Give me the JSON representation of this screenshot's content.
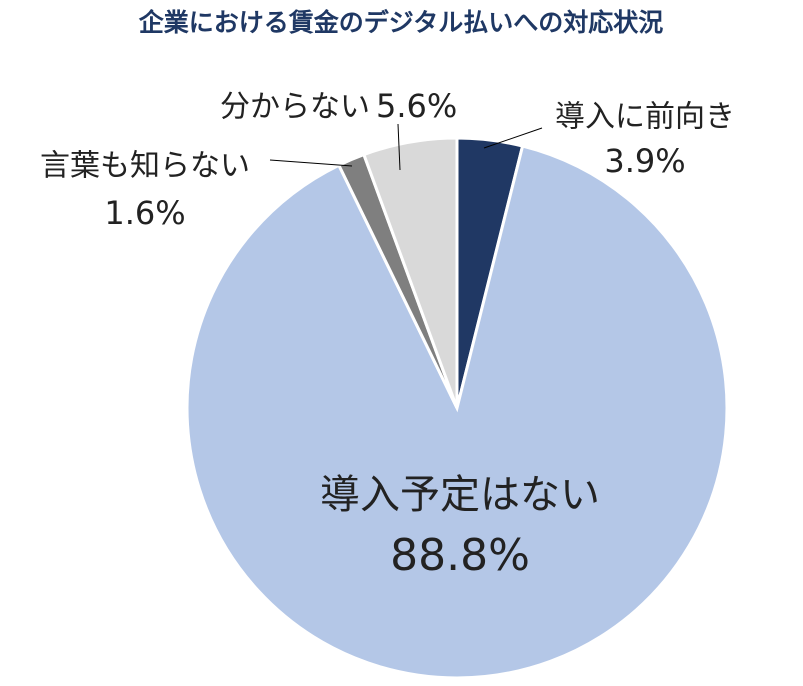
{
  "chart_data": {
    "type": "pie",
    "title": "企業における賃金のデジタル払いへの対応状況",
    "categories": [
      "導入に前向き",
      "導入予定はない",
      "言葉も知らない",
      "分からない"
    ],
    "values": [
      3.9,
      88.8,
      1.6,
      5.6
    ],
    "value_labels": [
      "3.9%",
      "88.8%",
      "1.6%",
      "5.6%"
    ],
    "colors": [
      "#203864",
      "#b4c7e7",
      "#7f7f7f",
      "#d9d9d9"
    ]
  }
}
